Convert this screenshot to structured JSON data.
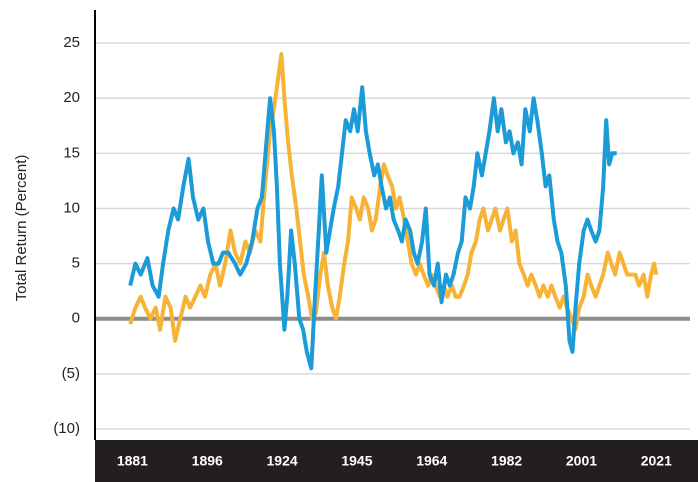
{
  "chart_data": {
    "type": "line",
    "ylabel": "Total Return (Percent)",
    "xlim": [
      -5,
      74.5
    ],
    "xticks": [
      {
        "value": 0,
        "label": "1881"
      },
      {
        "value": 10,
        "label": "1896"
      },
      {
        "value": 20,
        "label": "1924"
      },
      {
        "value": 30,
        "label": "1945"
      },
      {
        "value": 40,
        "label": "1964"
      },
      {
        "value": 50,
        "label": "1982"
      },
      {
        "value": 60,
        "label": "2001"
      },
      {
        "value": 70,
        "label": "2021"
      }
    ],
    "ylim": [
      -11,
      28
    ],
    "yticks": [
      {
        "value": -10,
        "label": "(10)"
      },
      {
        "value": -5,
        "label": "(5)"
      },
      0,
      5,
      10,
      15,
      20,
      25
    ],
    "grid": true,
    "series": [
      {
        "color": "#1b9bd7",
        "x": [
          -0.3,
          0.4,
          1.1,
          2,
          2.7,
          3.5,
          4.1,
          4.8,
          5.5,
          6.1,
          6.8,
          7.5,
          8.1,
          8.8,
          9.5,
          10.1,
          10.8,
          11.5,
          12.1,
          12.8,
          13.7,
          14.4,
          15.2,
          16,
          16.7,
          17.3,
          17.9,
          18.4,
          18.9,
          19.3,
          19.7,
          20.3,
          20.7,
          21.2,
          21.7,
          22.3,
          22.8,
          23.3,
          23.9,
          24.4,
          24.9,
          25.3,
          25.9,
          26.4,
          26.9,
          27.5,
          28,
          28.5,
          29.1,
          29.6,
          30.1,
          30.7,
          31.2,
          31.7,
          32.3,
          32.8,
          33.3,
          33.9,
          34.4,
          34.9,
          35.5,
          36,
          36.5,
          37.1,
          37.6,
          38.1,
          38.7,
          39.2,
          39.7,
          40.3,
          40.8,
          41.3,
          41.9,
          42.4,
          42.9,
          43.5,
          44,
          44.5,
          45.1,
          45.6,
          46.1,
          46.7,
          47.2,
          47.7,
          48.3,
          48.8,
          49.3,
          49.9,
          50.4,
          50.9,
          51.5,
          52,
          52.5,
          53.1,
          53.6,
          54.1,
          54.7,
          55.2,
          55.7,
          56.3,
          56.8,
          57.3,
          57.9,
          58.4,
          58.8,
          59.2,
          59.7,
          60.3,
          60.8,
          61.3,
          61.9,
          62.4,
          62.9,
          63.3,
          63.7,
          64.1,
          64.7
        ],
        "values": [
          3,
          5,
          4,
          5.5,
          3,
          2,
          5,
          8,
          10,
          9,
          12,
          14.5,
          11,
          9,
          10,
          7,
          5,
          5,
          6,
          6,
          5,
          4,
          5,
          7,
          10,
          11,
          16,
          20,
          17,
          12,
          5,
          -1,
          2,
          8,
          5,
          0,
          -1,
          -3,
          -4.5,
          2,
          8,
          13,
          6,
          8,
          10,
          12,
          15,
          18,
          17,
          19,
          17,
          21,
          17,
          15,
          13,
          14,
          12,
          10,
          11,
          9,
          8,
          7,
          9,
          8,
          6,
          5,
          7,
          10,
          4,
          3,
          5,
          1.5,
          4,
          3,
          4,
          6,
          7,
          11,
          10,
          12,
          15,
          13,
          15,
          17,
          20,
          17,
          19,
          16,
          17,
          15,
          16,
          14,
          19,
          17,
          20,
          18,
          15,
          12,
          13,
          9,
          7,
          6,
          3,
          -2,
          -3,
          1,
          5,
          8,
          9,
          8,
          7,
          8,
          12,
          18,
          14,
          15,
          15
        ]
      },
      {
        "color": "#f6b335",
        "x": [
          -0.3,
          0.4,
          1.1,
          1.7,
          2.4,
          3.1,
          3.7,
          4.4,
          5.1,
          5.7,
          6.4,
          7.1,
          7.7,
          8.4,
          9.1,
          9.7,
          10.4,
          11.1,
          11.7,
          12.4,
          13.1,
          13.7,
          14.4,
          15.1,
          15.7,
          16.4,
          17.1,
          17.7,
          18.4,
          18.9,
          19.5,
          19.9,
          20.3,
          20.8,
          21.3,
          21.9,
          22.4,
          22.9,
          23.5,
          24,
          24.5,
          25.1,
          25.6,
          26.1,
          26.7,
          27.2,
          27.7,
          28.3,
          28.8,
          29.3,
          29.9,
          30.4,
          30.9,
          31.5,
          32,
          32.5,
          33.1,
          33.6,
          34.1,
          34.7,
          35.2,
          35.7,
          36.3,
          36.8,
          37.3,
          37.9,
          38.4,
          38.9,
          39.5,
          40,
          40.5,
          41.1,
          41.6,
          42.1,
          42.7,
          43.2,
          43.7,
          44.3,
          44.8,
          45.3,
          45.9,
          46.4,
          46.9,
          47.5,
          48,
          48.5,
          49.1,
          49.6,
          50.1,
          50.7,
          51.2,
          51.7,
          52.3,
          52.8,
          53.3,
          53.9,
          54.4,
          54.9,
          55.5,
          56,
          56.5,
          57.1,
          57.6,
          58.1,
          58.7,
          59.2,
          59.7,
          60.3,
          60.8,
          61.3,
          61.9,
          62.4,
          62.9,
          63.5,
          64,
          64.5,
          65.1,
          65.6,
          66.1,
          66.7,
          67.2,
          67.7,
          68.3,
          68.8,
          69.3,
          69.7,
          70
        ],
        "values": [
          -0.5,
          1,
          2,
          1,
          0,
          1,
          -1,
          2,
          1,
          -2,
          0,
          2,
          1,
          2,
          3,
          2,
          4,
          5,
          3,
          5,
          8,
          6,
          5,
          7,
          6,
          8,
          7,
          12,
          17,
          19,
          22,
          24,
          20,
          16,
          13,
          10,
          7,
          4,
          2,
          0,
          0.5,
          4,
          6,
          3,
          1,
          0,
          2,
          5,
          7,
          11,
          10,
          9,
          11,
          10,
          8,
          9,
          12,
          14,
          13,
          12,
          10,
          11,
          9,
          7,
          5,
          4,
          5,
          4,
          3,
          4,
          3,
          2,
          3,
          2,
          3,
          2,
          2,
          3,
          4,
          6,
          7,
          9,
          10,
          8,
          9,
          10,
          8,
          9,
          10,
          7,
          8,
          5,
          4,
          3,
          4,
          3,
          2,
          3,
          2,
          3,
          2,
          1,
          2,
          1,
          0,
          -1,
          1,
          2,
          4,
          3,
          2,
          3,
          4,
          6,
          5,
          4,
          6,
          5,
          4,
          4,
          4,
          3,
          4,
          2,
          4,
          5,
          4
        ]
      }
    ]
  }
}
